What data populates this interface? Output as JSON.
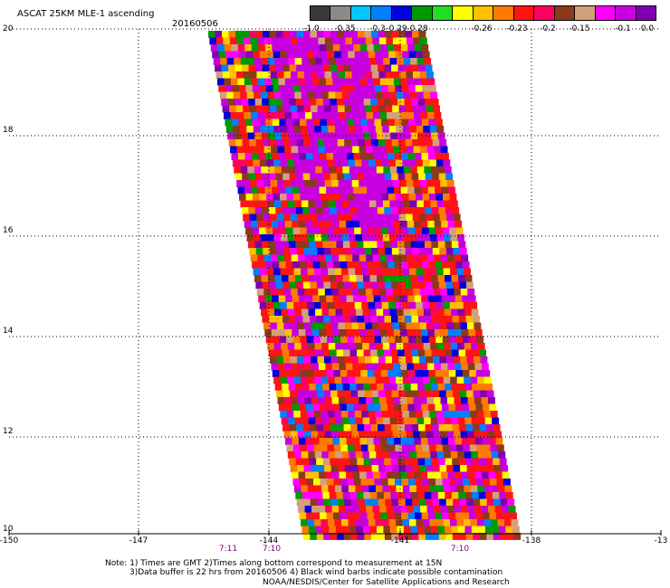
{
  "header": {
    "title": "ASCAT 25KM MLE-1 ascending",
    "date": "20160506"
  },
  "colorbar": {
    "colors": [
      "#3a3a3a",
      "#8a8a8a",
      "#00c8ff",
      "#007fff",
      "#0000e0",
      "#009a00",
      "#22dd22",
      "#ffff00",
      "#ffc000",
      "#ff7a00",
      "#ff1414",
      "#ff0060",
      "#8b3a1a",
      "#d2a07a",
      "#ff00ff",
      "#c800e0",
      "#7f00b0"
    ],
    "labels": [
      "-1.0",
      "-0.35",
      "-0.3",
      "-0.29",
      "-0.28",
      "-0.26",
      "-0.23",
      "-0.2",
      "-0.15",
      "-0.1",
      "0.0"
    ]
  },
  "map": {
    "lat_labels": [
      "20",
      "18",
      "16",
      "14",
      "12",
      "10"
    ],
    "lon_labels": [
      "-150",
      "-147",
      "-144",
      "-141",
      "-138",
      "-13"
    ],
    "time_labels": [
      "7:11",
      "7:10",
      "7:10"
    ]
  },
  "notes": {
    "line1": "Note: 1) Times are GMT 2)Times along bottom correspond to measurement at 15N",
    "line2": "3)Data buffer is 22 hrs from 20160506 4) Black wind barbs indicate possible contamination",
    "line3": "NOAA/NESDIS/Center for Satellite Applications and Research"
  }
}
